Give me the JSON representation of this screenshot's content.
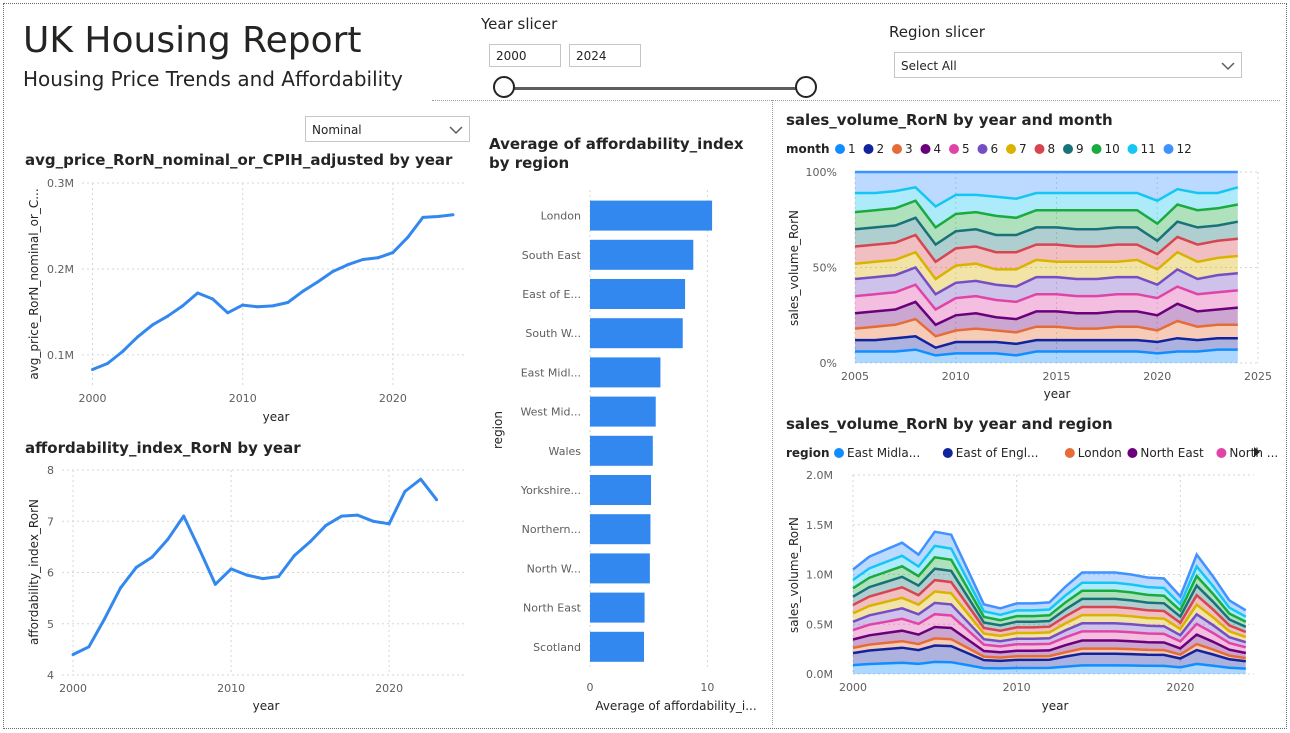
{
  "header": {
    "title": "UK Housing Report",
    "subtitle": "Housing Price Trends and Affordability"
  },
  "year_slicer": {
    "label": "Year slicer",
    "start": "2000",
    "end": "2024"
  },
  "region_slicer": {
    "label": "Region slicer",
    "value": "Select All"
  },
  "price_mode": {
    "value": "Nominal"
  },
  "colors": {
    "accent": "#3388f0",
    "month_palette": [
      "#118dff",
      "#12239e",
      "#e66c37",
      "#6b007b",
      "#e044a7",
      "#744ec2",
      "#d9b300",
      "#d64550",
      "#197278",
      "#1aab40",
      "#15c6f4",
      "#4092ff"
    ],
    "region_palette": [
      "#118dff",
      "#12239e",
      "#e66c37",
      "#6b007b",
      "#e044a7"
    ]
  },
  "chart_data": [
    {
      "id": "avg_price",
      "type": "line",
      "title": "avg_price_RorN_nominal_or_CPIH_adjusted by year",
      "xlabel": "year",
      "ylabel": "avg_price_RorN_nominal_or_C...",
      "x_ticks": [
        "2000",
        "2010",
        "2020"
      ],
      "y_ticks": [
        "0.1M",
        "0.2M",
        "0.3M"
      ],
      "xlim": [
        1999.3,
        2024.8
      ],
      "ylim": [
        0.065,
        0.3
      ],
      "x": [
        2000,
        2001,
        2002,
        2003,
        2004,
        2005,
        2006,
        2007,
        2008,
        2009,
        2010,
        2011,
        2012,
        2013,
        2014,
        2015,
        2016,
        2017,
        2018,
        2019,
        2020,
        2021,
        2022,
        2023,
        2024
      ],
      "y": [
        0.083,
        0.09,
        0.104,
        0.121,
        0.135,
        0.145,
        0.157,
        0.172,
        0.165,
        0.149,
        0.158,
        0.156,
        0.157,
        0.161,
        0.174,
        0.185,
        0.197,
        0.205,
        0.211,
        0.213,
        0.219,
        0.237,
        0.26,
        0.261,
        0.263
      ]
    },
    {
      "id": "affordability_line",
      "type": "line",
      "title": "affordability_index_RorN by year",
      "xlabel": "year",
      "ylabel": "affordability_index_RorN",
      "x_ticks": [
        "2000",
        "2010",
        "2020"
      ],
      "y_ticks": [
        "4",
        "5",
        "6",
        "7",
        "8"
      ],
      "xlim": [
        1999.3,
        2024.8
      ],
      "ylim": [
        4,
        8
      ],
      "x": [
        2000,
        2001,
        2002,
        2003,
        2004,
        2005,
        2006,
        2007,
        2008,
        2009,
        2010,
        2011,
        2012,
        2013,
        2014,
        2015,
        2016,
        2017,
        2018,
        2019,
        2020,
        2021,
        2022,
        2023
      ],
      "y": [
        4.4,
        4.55,
        5.1,
        5.7,
        6.1,
        6.3,
        6.65,
        7.1,
        6.45,
        5.77,
        6.07,
        5.95,
        5.88,
        5.92,
        6.33,
        6.6,
        6.92,
        7.1,
        7.12,
        7.0,
        6.95,
        7.58,
        7.82,
        7.42
      ]
    },
    {
      "id": "affordability_by_region",
      "type": "bar",
      "orientation": "horizontal",
      "title": "Average of affordability_index by region",
      "xlabel": "Average of affordability_i...",
      "ylabel": "region",
      "x_ticks": [
        "0",
        "10"
      ],
      "xlim": [
        0,
        13.8
      ],
      "categories": [
        "London",
        "South East",
        "East of E...",
        "South W...",
        "East Midl...",
        "West Mid...",
        "Wales",
        "Yorkshire...",
        "Northern...",
        "North W...",
        "North East",
        "Scotland"
      ],
      "values": [
        10.4,
        8.8,
        8.1,
        7.9,
        6.0,
        5.6,
        5.35,
        5.2,
        5.15,
        5.1,
        4.65,
        4.6
      ]
    },
    {
      "id": "sales_by_month",
      "type": "area",
      "stacked": "percent",
      "title": "sales_volume_RorN by year and month",
      "xlabel": "year",
      "ylabel": "sales_volume_RorN",
      "legend_title": "month",
      "legend": [
        "1",
        "2",
        "3",
        "4",
        "5",
        "6",
        "7",
        "8",
        "9",
        "10",
        "11",
        "12"
      ],
      "x_ticks": [
        "2005",
        "2010",
        "2015",
        "2020",
        "2025"
      ],
      "y_ticks": [
        "0%",
        "50%",
        "100%"
      ],
      "xlim": [
        2005,
        2025
      ],
      "years": [
        2005,
        2006,
        2007,
        2008,
        2009,
        2010,
        2011,
        2012,
        2013,
        2014,
        2015,
        2016,
        2017,
        2018,
        2019,
        2020,
        2021,
        2022,
        2023,
        2024
      ],
      "cumulative_pct": [
        [
          6,
          6,
          6,
          7,
          4,
          5,
          5,
          5,
          4,
          6,
          6,
          6,
          6,
          6,
          6,
          5,
          6,
          6,
          7,
          7
        ],
        [
          12,
          12,
          13,
          14,
          8,
          11,
          11,
          11,
          10,
          12,
          12,
          12,
          12,
          12,
          12,
          11,
          13,
          12,
          13,
          13
        ],
        [
          18,
          19,
          20,
          23,
          14,
          17,
          18,
          17,
          16,
          19,
          19,
          18,
          18,
          19,
          19,
          17,
          22,
          19,
          20,
          20
        ],
        [
          26,
          27,
          28,
          32,
          20,
          25,
          26,
          24,
          23,
          27,
          27,
          26,
          26,
          27,
          27,
          25,
          31,
          27,
          28,
          29
        ],
        [
          35,
          36,
          37,
          41,
          28,
          34,
          35,
          33,
          32,
          36,
          36,
          35,
          35,
          36,
          36,
          34,
          40,
          36,
          37,
          38
        ],
        [
          44,
          45,
          46,
          50,
          36,
          42,
          43,
          41,
          40,
          45,
          45,
          44,
          44,
          45,
          45,
          41,
          49,
          44,
          46,
          47
        ],
        [
          52,
          53,
          54,
          58,
          44,
          51,
          52,
          49,
          49,
          54,
          53,
          53,
          53,
          53,
          54,
          49,
          58,
          53,
          55,
          56
        ],
        [
          61,
          62,
          63,
          67,
          53,
          60,
          61,
          58,
          58,
          62,
          62,
          61,
          61,
          62,
          62,
          57,
          66,
          62,
          64,
          65
        ],
        [
          70,
          71,
          72,
          76,
          62,
          69,
          70,
          67,
          67,
          71,
          71,
          70,
          70,
          71,
          71,
          64,
          74,
          71,
          72,
          74
        ],
        [
          79,
          80,
          81,
          85,
          71,
          78,
          79,
          77,
          76,
          80,
          80,
          80,
          80,
          80,
          80,
          73,
          83,
          80,
          81,
          83
        ],
        [
          89,
          89,
          90,
          92,
          82,
          88,
          88,
          87,
          86,
          89,
          89,
          89,
          89,
          89,
          89,
          85,
          91,
          89,
          89,
          92
        ],
        [
          100,
          100,
          100,
          100,
          100,
          100,
          100,
          100,
          100,
          100,
          100,
          100,
          100,
          100,
          100,
          100,
          100,
          100,
          100,
          100
        ]
      ]
    },
    {
      "id": "sales_by_region",
      "type": "area",
      "stacked": "absolute",
      "title": "sales_volume_RorN by year and region",
      "xlabel": "year",
      "ylabel": "sales_volume_RorN",
      "legend_title": "region",
      "legend": [
        "East Midla...",
        "East of Engl...",
        "London",
        "North East",
        "North ..."
      ],
      "x_ticks": [
        "2000",
        "2010",
        "2020"
      ],
      "y_ticks": [
        "0.0M",
        "0.5M",
        "1.0M",
        "1.5M",
        "2.0M"
      ],
      "xlim": [
        2000,
        2024.5
      ],
      "ylim": [
        0,
        2.0
      ],
      "years": [
        2000,
        2001,
        2002,
        2003,
        2004,
        2005,
        2006,
        2007,
        2008,
        2009,
        2010,
        2011,
        2012,
        2013,
        2014,
        2015,
        2016,
        2017,
        2018,
        2019,
        2020,
        2021,
        2022,
        2023,
        2024
      ],
      "total": [
        1.05,
        1.18,
        1.25,
        1.32,
        1.2,
        1.43,
        1.4,
        1.05,
        0.7,
        0.66,
        0.71,
        0.71,
        0.72,
        0.88,
        1.02,
        1.02,
        1.02,
        1.0,
        0.97,
        0.96,
        0.78,
        1.2,
        0.98,
        0.74,
        0.64
      ]
    }
  ]
}
